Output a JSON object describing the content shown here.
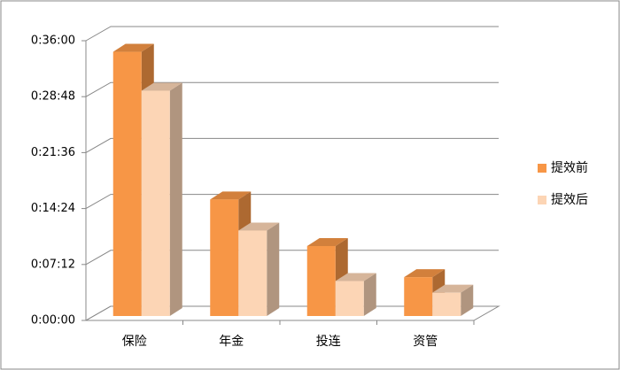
{
  "chart_data": {
    "type": "bar3d",
    "categories": [
      "保险",
      "年金",
      "投连",
      "资管"
    ],
    "series": [
      {
        "name": "提效前",
        "color": "#f79646",
        "values": [
          2040,
          900,
          540,
          300
        ]
      },
      {
        "name": "提效后",
        "color": "#fcd5b5",
        "values": [
          1740,
          660,
          270,
          180
        ]
      }
    ],
    "ylim": [
      0,
      2160
    ],
    "yticks": [
      {
        "value": 0,
        "label": "0:00:00"
      },
      {
        "value": 432,
        "label": "0:07:12"
      },
      {
        "value": 864,
        "label": "0:14:24"
      },
      {
        "value": 1296,
        "label": "0:21:36"
      },
      {
        "value": 1728,
        "label": "0:28:48"
      },
      {
        "value": 2160,
        "label": "0:36:00"
      }
    ],
    "grid": true,
    "legend": "right"
  }
}
